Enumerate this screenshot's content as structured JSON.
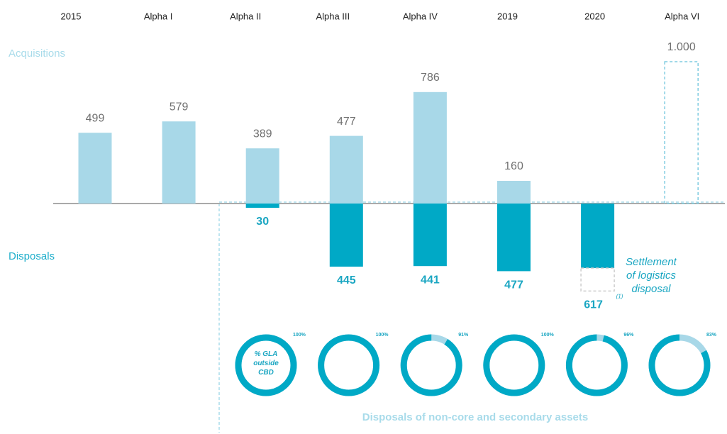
{
  "chart_data": {
    "type": "bar",
    "categories": [
      "2015",
      "Alpha I",
      "Alpha II",
      "Alpha III",
      "Alpha IV",
      "2019",
      "2020",
      "Alpha VI"
    ],
    "series": [
      {
        "name": "Acquisitions",
        "color": "#a8d8e8",
        "label_color": "#707070",
        "values": [
          499,
          579,
          389,
          477,
          786,
          160,
          null,
          1000
        ],
        "value_labels": [
          "499",
          "579",
          "389",
          "477",
          "786",
          "160",
          null,
          "1.000"
        ],
        "dashed": [
          false,
          false,
          false,
          false,
          false,
          false,
          false,
          true
        ]
      },
      {
        "name": "Disposals",
        "color": "#00a9c6",
        "label_color": "#1aa6c2",
        "values": [
          null,
          null,
          30,
          445,
          441,
          477,
          617,
          null
        ],
        "settlement": [
          null,
          null,
          null,
          null,
          null,
          null,
          162,
          null
        ]
      }
    ],
    "annotation": "Settlement of logistics disposal",
    "footnote": "(1)",
    "donuts": {
      "title": "Disposals of non-core and secondary assets",
      "inner_label": "% GLA outside CBD",
      "values": [
        100,
        100,
        91,
        100,
        96,
        83
      ],
      "value_labels": [
        "100%",
        "100%",
        "91%",
        "100%",
        "96%",
        "83%"
      ]
    }
  }
}
